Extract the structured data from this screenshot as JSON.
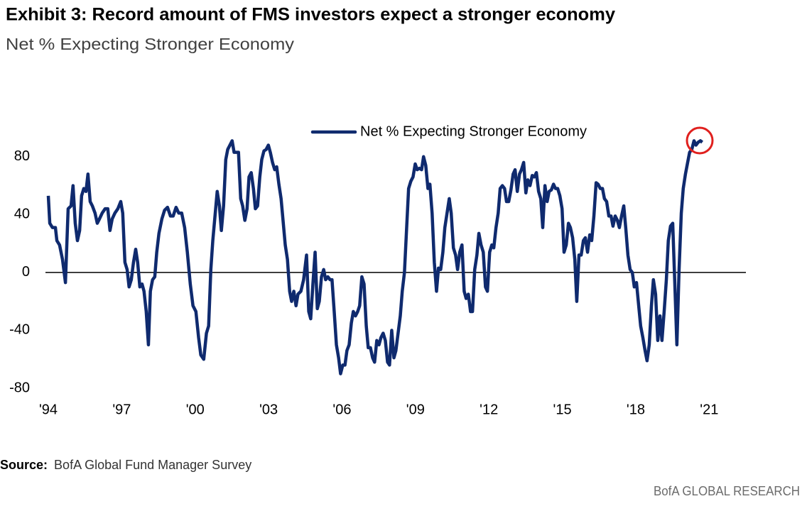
{
  "chart_data": {
    "type": "line",
    "title": "Exhibit 3: Record amount of FMS investors expect a stronger economy",
    "subtitle": "Net % Expecting Stronger Economy",
    "source_label": "Source:",
    "source": "BofA Global Fund Manager Survey",
    "branding": "BofA GLOBAL RESEARCH",
    "legend": "top",
    "grid": false,
    "x": [
      1994.0,
      1994.06,
      1994.17,
      1994.29,
      1994.35,
      1994.46,
      1994.58,
      1994.7,
      1994.81,
      1994.93,
      1995.01,
      1995.1,
      1995.19,
      1995.28,
      1995.36,
      1995.45,
      1995.54,
      1995.62,
      1995.71,
      1995.8,
      1995.91,
      1996.0,
      1996.09,
      1996.2,
      1996.32,
      1996.43,
      1996.52,
      1996.61,
      1996.72,
      1996.84,
      1996.96,
      1997.04,
      1997.13,
      1997.22,
      1997.3,
      1997.39,
      1997.48,
      1997.57,
      1997.65,
      1997.74,
      1997.83,
      1997.91,
      1998.0,
      1998.09,
      1998.17,
      1998.26,
      1998.35,
      1998.43,
      1998.52,
      1998.64,
      1998.75,
      1998.87,
      1998.99,
      1999.1,
      1999.22,
      1999.33,
      1999.45,
      1999.57,
      1999.68,
      1999.8,
      1999.91,
      2000.03,
      2000.14,
      2000.23,
      2000.35,
      2000.46,
      2000.55,
      2000.64,
      2000.72,
      2000.81,
      2000.9,
      2000.99,
      2001.07,
      2001.16,
      2001.25,
      2001.33,
      2001.42,
      2001.51,
      2001.59,
      2001.68,
      2001.77,
      2001.86,
      2001.94,
      2002.03,
      2002.12,
      2002.2,
      2002.29,
      2002.38,
      2002.46,
      2002.55,
      2002.64,
      2002.72,
      2002.81,
      2002.9,
      2002.99,
      2003.07,
      2003.16,
      2003.25,
      2003.33,
      2003.42,
      2003.51,
      2003.59,
      2003.68,
      2003.77,
      2003.86,
      2003.94,
      2004.03,
      2004.12,
      2004.2,
      2004.32,
      2004.43,
      2004.55,
      2004.64,
      2004.72,
      2004.81,
      2004.9,
      2004.99,
      2005.07,
      2005.16,
      2005.25,
      2005.33,
      2005.42,
      2005.51,
      2005.59,
      2005.68,
      2005.77,
      2005.86,
      2005.94,
      2006.03,
      2006.12,
      2006.2,
      2006.29,
      2006.38,
      2006.46,
      2006.55,
      2006.64,
      2006.72,
      2006.81,
      2006.9,
      2006.99,
      2007.07,
      2007.16,
      2007.25,
      2007.33,
      2007.42,
      2007.51,
      2007.59,
      2007.68,
      2007.77,
      2007.86,
      2007.94,
      2008.03,
      2008.12,
      2008.2,
      2008.29,
      2008.38,
      2008.46,
      2008.55,
      2008.64,
      2008.72,
      2008.81,
      2008.9,
      2008.99,
      2009.07,
      2009.16,
      2009.25,
      2009.33,
      2009.42,
      2009.51,
      2009.59,
      2009.68,
      2009.77,
      2009.86,
      2009.94,
      2010.03,
      2010.12,
      2010.2,
      2010.29,
      2010.38,
      2010.46,
      2010.55,
      2010.64,
      2010.72,
      2010.81,
      2010.9,
      2010.99,
      2011.07,
      2011.16,
      2011.25,
      2011.33,
      2011.42,
      2011.51,
      2011.59,
      2011.68,
      2011.77,
      2011.86,
      2011.94,
      2012.03,
      2012.12,
      2012.2,
      2012.29,
      2012.38,
      2012.46,
      2012.55,
      2012.64,
      2012.72,
      2012.81,
      2012.9,
      2012.99,
      2013.07,
      2013.16,
      2013.25,
      2013.33,
      2013.42,
      2013.51,
      2013.59,
      2013.68,
      2013.77,
      2013.86,
      2013.94,
      2014.03,
      2014.12,
      2014.2,
      2014.29,
      2014.38,
      2014.46,
      2014.55,
      2014.64,
      2014.72,
      2014.81,
      2014.9,
      2014.99,
      2015.07,
      2015.16,
      2015.25,
      2015.33,
      2015.42,
      2015.51,
      2015.59,
      2015.68,
      2015.77,
      2015.86,
      2015.94,
      2016.03,
      2016.12,
      2016.2,
      2016.29,
      2016.38,
      2016.46,
      2016.55,
      2016.64,
      2016.72,
      2016.81,
      2016.9,
      2016.99,
      2017.07,
      2017.16,
      2017.25,
      2017.33,
      2017.42,
      2017.51,
      2017.59,
      2017.68,
      2017.77,
      2017.86,
      2017.94,
      2018.03,
      2018.12,
      2018.2,
      2018.29,
      2018.38,
      2018.46,
      2018.55,
      2018.64,
      2018.72,
      2018.81,
      2018.9,
      2018.99,
      2019.07,
      2019.16,
      2019.25,
      2019.33,
      2019.42,
      2019.51,
      2019.59,
      2019.68,
      2019.77,
      2019.86,
      2019.94,
      2020.03,
      2020.12,
      2020.2,
      2020.29,
      2020.38,
      2020.46,
      2020.55,
      2020.64,
      2020.72
    ],
    "series": [
      {
        "name": "Net % Expecting Stronger Economy",
        "color": "#0f2a6e",
        "values": [
          53,
          34,
          31,
          31,
          22,
          19,
          9,
          -7,
          44,
          46,
          60,
          34,
          22,
          29,
          53,
          58,
          56,
          68,
          49,
          46,
          41,
          34,
          37,
          41,
          44,
          44,
          29,
          37,
          41,
          44,
          49,
          41,
          7,
          2,
          -10,
          -5,
          7,
          16,
          7,
          -10,
          -8,
          -13,
          -27,
          -50,
          -13,
          -5,
          -3,
          14,
          27,
          37,
          43,
          45,
          39,
          39,
          45,
          41,
          41,
          31,
          14,
          -8,
          -23,
          -27,
          -45,
          -57,
          -60,
          -42,
          -37,
          2,
          22,
          39,
          56,
          46,
          29,
          46,
          78,
          85,
          88,
          91,
          83,
          83,
          83,
          51,
          46,
          36,
          44,
          66,
          69,
          58,
          44,
          46,
          66,
          78,
          84,
          85,
          88,
          83,
          76,
          71,
          73,
          61,
          51,
          36,
          19,
          9,
          -13,
          -20,
          -13,
          -23,
          -15,
          -13,
          -5,
          12,
          -27,
          -32,
          -8,
          14,
          -25,
          -20,
          -3,
          2,
          -5,
          -3,
          -5,
          -5,
          -27,
          -50,
          -59,
          -70,
          -64,
          -64,
          -54,
          -50,
          -35,
          -27,
          -30,
          -27,
          -23,
          -3,
          -8,
          -37,
          -52,
          -52,
          -59,
          -62,
          -47,
          -50,
          -45,
          -42,
          -47,
          -62,
          -64,
          -40,
          -59,
          -54,
          -42,
          -30,
          -13,
          0,
          31,
          58,
          63,
          66,
          75,
          71,
          72,
          71,
          80,
          74,
          58,
          61,
          41,
          7,
          -13,
          3,
          2,
          14,
          31,
          41,
          51,
          41,
          17,
          12,
          2,
          14,
          19,
          -13,
          -18,
          -15,
          -27,
          -27,
          2,
          12,
          27,
          19,
          14,
          -10,
          -13,
          14,
          19,
          17,
          31,
          41,
          58,
          60,
          58,
          49,
          49,
          57,
          68,
          71,
          56,
          68,
          71,
          76,
          55,
          64,
          60,
          67,
          66,
          69,
          56,
          51,
          31,
          60,
          49,
          56,
          57,
          61,
          58,
          58,
          53,
          44,
          14,
          19,
          34,
          31,
          24,
          9,
          -20,
          12,
          12,
          22,
          24,
          14,
          26,
          22,
          39,
          62,
          61,
          58,
          58,
          51,
          49,
          39,
          39,
          32,
          39,
          36,
          31,
          39,
          46,
          31,
          12,
          2,
          0,
          -10,
          -7,
          -23,
          -37,
          -45,
          -54,
          -61,
          -50,
          -23,
          -5,
          -15,
          -47,
          -30,
          -47,
          -27,
          -5,
          22,
          32,
          34,
          -5,
          -50,
          2,
          41,
          58,
          68,
          76,
          83,
          85,
          91,
          88,
          90,
          91,
          90
        ]
      }
    ],
    "xlim": [
      1994,
      2022.5
    ],
    "xticks": [
      {
        "value": 1994,
        "label": "'94"
      },
      {
        "value": 1997,
        "label": "'97"
      },
      {
        "value": 2000,
        "label": "'00"
      },
      {
        "value": 2003,
        "label": "'03"
      },
      {
        "value": 2006,
        "label": "'06"
      },
      {
        "value": 2009,
        "label": "'09"
      },
      {
        "value": 2012,
        "label": "'12"
      },
      {
        "value": 2015,
        "label": "'15"
      },
      {
        "value": 2018,
        "label": "'18"
      },
      {
        "value": 2021,
        "label": "'21"
      }
    ],
    "ylim": [
      -80,
      100
    ],
    "yticks": [
      -80,
      -40,
      0,
      40,
      80
    ]
  }
}
